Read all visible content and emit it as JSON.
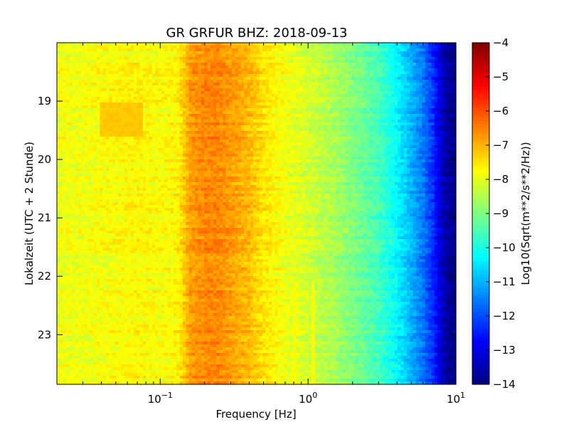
{
  "chart_data": {
    "type": "heatmap",
    "title": "GR GRFUR BHZ: 2018-09-13",
    "xlabel": "Frequency [Hz]",
    "ylabel": "Lokalzeit (UTC + 2 Stunde)",
    "x_scale": "log",
    "xlim": [
      0.02,
      10
    ],
    "x_ticks": [
      {
        "value": 0.1,
        "base": "10",
        "exp": "−1"
      },
      {
        "value": 1,
        "base": "10",
        "exp": "0"
      },
      {
        "value": 10,
        "base": "10",
        "exp": "1"
      }
    ],
    "ylim": [
      18.0,
      23.85
    ],
    "y_inverted": true,
    "y_ticks": [
      "19",
      "20",
      "21",
      "22",
      "23"
    ],
    "colorbar": {
      "label": "Log10(Sqrt(m**2/s**2/Hz))",
      "range": [
        -14,
        -4
      ],
      "ticks": [
        "−4",
        "−5",
        "−6",
        "−7",
        "−8",
        "−9",
        "−10",
        "−11",
        "−12",
        "−13",
        "−14"
      ],
      "colormap": "jet"
    },
    "mean_spectrum": {
      "freq_hz": [
        0.02,
        0.03,
        0.04,
        0.05,
        0.07,
        0.1,
        0.13,
        0.16,
        0.2,
        0.25,
        0.3,
        0.4,
        0.5,
        0.7,
        1.0,
        1.5,
        2.0,
        3.0,
        4.0,
        5.0,
        6.0,
        7.0,
        8.0,
        9.0,
        10.0
      ],
      "log10_amplitude": [
        -7.9,
        -7.9,
        -7.8,
        -7.8,
        -7.7,
        -7.8,
        -7.7,
        -6.8,
        -6.6,
        -6.6,
        -6.8,
        -7.1,
        -7.5,
        -7.9,
        -8.2,
        -8.6,
        -9.0,
        -9.6,
        -10.3,
        -11.0,
        -11.6,
        -12.3,
        -13.3,
        -13.8,
        -13.9
      ]
    },
    "features": {
      "early_band": {
        "hour_from": 19.0,
        "hour_to": 19.6,
        "freq_from": 0.04,
        "freq_to": 0.075,
        "log10_amplitude": -7.2
      },
      "narrow_lines": {
        "freqs_hz": [
          0.8,
          1.1
        ],
        "hour_from": 22.1,
        "hour_to": 23.85,
        "log10_amplitude": -7.7
      }
    }
  }
}
